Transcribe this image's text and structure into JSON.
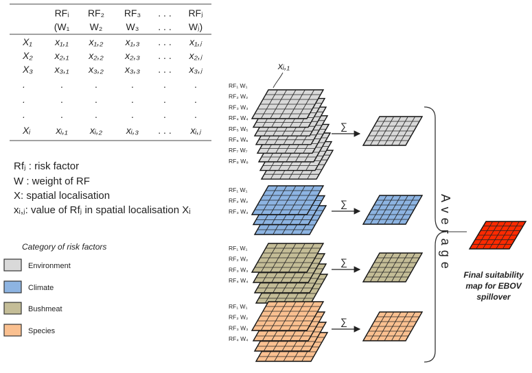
{
  "table": {
    "col_headers_top": [
      "RFᵢ",
      "RF₂",
      "RF₃",
      ". . .",
      "RFⱼ"
    ],
    "col_headers_bottom": [
      "(W₁",
      "W₂",
      "W₃",
      ". . .",
      "Wⱼ)"
    ],
    "row_labels": [
      "X₁",
      "X₂",
      "X₃",
      ".",
      ".",
      ".",
      "Xᵢ"
    ],
    "rows": [
      [
        "x₁,₁",
        "x₁,₂",
        "x₁,₃",
        ". . .",
        "x₁,ⱼ"
      ],
      [
        "x₂,₁",
        "x₂,₂",
        "x₂,₃",
        ". . .",
        "x₂,ⱼ"
      ],
      [
        "x₃,₁",
        "x₃,₂",
        "x₃,₃",
        ". . .",
        "x₃,ⱼ"
      ],
      [
        ".",
        ".",
        ".",
        ".",
        "."
      ],
      [
        ".",
        ".",
        ".",
        ".",
        "."
      ],
      [
        ".",
        ".",
        ".",
        ".",
        "."
      ],
      [
        "xᵢ,₁",
        "xᵢ,₂",
        "xᵢ,₃",
        ". . .",
        "xᵢ,ⱼ"
      ]
    ]
  },
  "definitions": [
    "Rfⱼ : risk factor",
    "W : weight of RF",
    "X: spatial localisation",
    "xᵢ,ⱼ: value of Rfⱼ in spatial localisation Xᵢ"
  ],
  "legend": {
    "title": "Category of risk factors",
    "items": [
      {
        "label": "Environment",
        "color": "#d9d9d9"
      },
      {
        "label": "Climate",
        "color": "#8db4e2"
      },
      {
        "label": "Bushmeat",
        "color": "#c4bd97"
      },
      {
        "label": "Species",
        "color": "#fac090"
      }
    ]
  },
  "pointer_label": "xᵢ,₁",
  "groups": [
    {
      "name": "Environment",
      "color": "#d9d9d9",
      "labels": [
        "RF₁ W₁",
        "RF₂ W₂",
        "RF₃ W₃",
        "RF₄ W₄",
        "RF₅ W₅",
        "RF₆ W₆",
        "RF₇ W₇",
        "RF₈ W₈"
      ]
    },
    {
      "name": "Climate",
      "color": "#8db4e2",
      "labels": [
        "RF₁ W₁",
        "RF₂ W₂",
        "RF₃ W₃"
      ]
    },
    {
      "name": "Bushmeat",
      "color": "#c4bd97",
      "labels": [
        "RF₁ W₁",
        "RF₂ W₂",
        "RF₃ W₃",
        "RF₄ W₄"
      ]
    },
    {
      "name": "Species",
      "color": "#fac090",
      "labels": [
        "RF₁ W₁",
        "RF₂ W₂",
        "RF₃ W₃",
        "RF₄ W₄"
      ]
    }
  ],
  "sigma": "∑",
  "average_label": "Average",
  "final": {
    "lines": [
      "Final suitability",
      "map for EBOV",
      "spillover"
    ],
    "color": "#ff2a00"
  }
}
